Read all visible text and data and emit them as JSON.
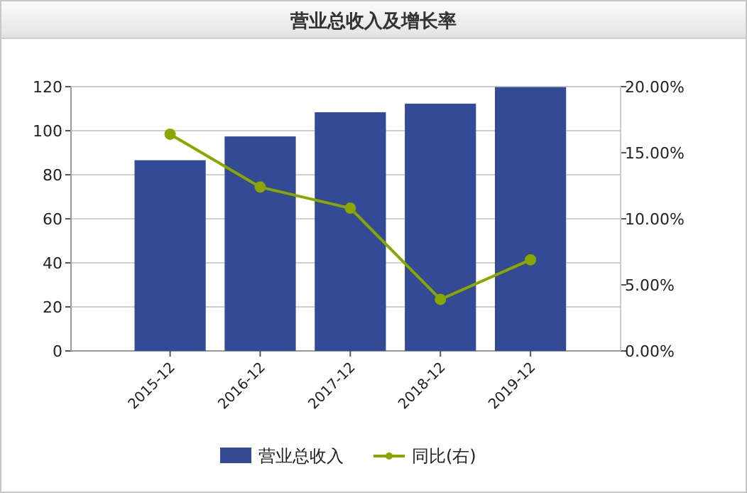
{
  "chart_data": {
    "type": "bar",
    "title": "营业总收入及增长率",
    "categories": [
      "2015-12",
      "2016-12",
      "2017-12",
      "2018-12",
      "2019-12"
    ],
    "series": [
      {
        "name": "营业总收入",
        "color": "#334a94",
        "values": [
          86.6,
          97.4,
          108.4,
          112.3,
          119.8
        ]
      },
      {
        "name": "同比(右)",
        "type": "line",
        "axis": "y2",
        "color": "#8aa600",
        "marker": "circle",
        "values": [
          16.4,
          12.4,
          10.8,
          3.9,
          6.9
        ]
      }
    ],
    "ylim": [
      0,
      120
    ],
    "yticks": [
      0,
      20,
      40,
      60,
      80,
      100,
      120
    ],
    "y2lim": [
      0,
      20
    ],
    "y2ticks": [
      {
        "value": 0,
        "label": "0.00%"
      },
      {
        "value": 5,
        "label": "5.00%"
      },
      {
        "value": 10,
        "label": "10.00%"
      },
      {
        "value": 15,
        "label": "15.00%"
      },
      {
        "value": 20,
        "label": "20.00%"
      }
    ],
    "grid": "y",
    "legend": "bottom"
  }
}
